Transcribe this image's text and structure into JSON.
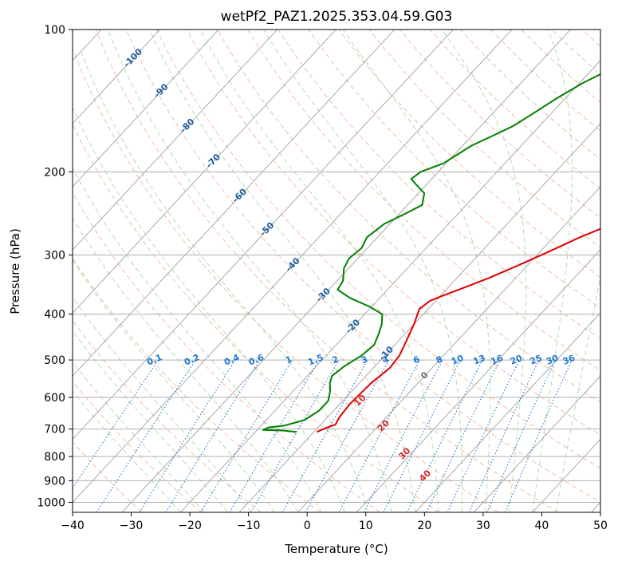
{
  "chart_data": {
    "type": "line",
    "title": "wetPf2_PAZ1.2025.353.04.59.G03",
    "xlabel": "Temperature (°C)",
    "ylabel": "Pressure (hPa)",
    "xlim": [
      -40,
      50
    ],
    "ylim": [
      1050,
      100
    ],
    "x_ticks": [
      -40,
      -30,
      -20,
      -10,
      0,
      10,
      20,
      30,
      40,
      50
    ],
    "y_ticks": [
      100,
      200,
      300,
      400,
      500,
      600,
      700,
      800,
      900,
      1000
    ],
    "x_tick_labels": [
      "−40",
      "−30",
      "−20",
      "−10",
      "0",
      "10",
      "20",
      "30",
      "40",
      "50"
    ],
    "y_tick_labels": [
      "100",
      "200",
      "300",
      "400",
      "500",
      "600",
      "700",
      "800",
      "900",
      "1000"
    ],
    "colors": {
      "temperature": "#e00000",
      "dewpoint": "#008000",
      "isotherm": "#a0a0a0",
      "dry_adiabat": "#f4a582",
      "moist_adiabat": "#9ecf9e",
      "mixing_ratio": "#1f78d1",
      "isotherm_label": "#1f5f9f",
      "moist_label": "#d62728"
    },
    "series": [
      {
        "name": "Temperature",
        "points": [
          [
            -9.5,
            710
          ],
          [
            -8.5,
            695
          ],
          [
            -7.5,
            685
          ],
          [
            -8.0,
            660
          ],
          [
            -8.3,
            620
          ],
          [
            -8.0,
            560
          ],
          [
            -7.2,
            520
          ],
          [
            -7.5,
            490
          ],
          [
            -8.5,
            460
          ],
          [
            -10.0,
            420
          ],
          [
            -11.5,
            390
          ],
          [
            -11.0,
            375
          ],
          [
            -9.5,
            365
          ],
          [
            -7.0,
            350
          ],
          [
            -4.5,
            335
          ],
          [
            -1.5,
            315
          ],
          [
            1.5,
            295
          ],
          [
            4.5,
            275
          ],
          [
            8.5,
            255
          ],
          [
            13.0,
            235
          ],
          [
            17.0,
            220
          ],
          [
            21.5,
            205
          ],
          [
            25.0,
            192
          ],
          [
            28.0,
            180
          ],
          [
            30.5,
            168
          ],
          [
            32.0,
            158
          ],
          [
            33.5,
            148
          ],
          [
            35.5,
            140
          ],
          [
            37.0,
            132
          ],
          [
            38.0,
            122
          ],
          [
            39.5,
            114
          ],
          [
            41.5,
            106
          ],
          [
            43.5,
            100
          ]
        ]
      },
      {
        "name": "Dewpoint",
        "points": [
          [
            -13.0,
            710
          ],
          [
            -15.5,
            705
          ],
          [
            -19.0,
            703
          ],
          [
            -18.5,
            695
          ],
          [
            -16.0,
            688
          ],
          [
            -13.5,
            670
          ],
          [
            -12.5,
            640
          ],
          [
            -12.5,
            610
          ],
          [
            -13.8,
            580
          ],
          [
            -15.0,
            560
          ],
          [
            -15.8,
            540
          ],
          [
            -15.2,
            515
          ],
          [
            -14.0,
            490
          ],
          [
            -13.5,
            465
          ],
          [
            -14.5,
            440
          ],
          [
            -15.5,
            420
          ],
          [
            -17.0,
            400
          ],
          [
            -20.5,
            385
          ],
          [
            -25.0,
            370
          ],
          [
            -28.5,
            355
          ],
          [
            -29.0,
            340
          ],
          [
            -30.8,
            320
          ],
          [
            -31.5,
            305
          ],
          [
            -31.0,
            290
          ],
          [
            -31.8,
            275
          ],
          [
            -31.0,
            258
          ],
          [
            -29.0,
            245
          ],
          [
            -27.5,
            235
          ],
          [
            -29.0,
            222
          ],
          [
            -32.0,
            212
          ],
          [
            -33.5,
            207
          ],
          [
            -33.0,
            200
          ],
          [
            -30.5,
            192
          ],
          [
            -29.5,
            184
          ],
          [
            -28.5,
            176
          ],
          [
            -26.5,
            168
          ],
          [
            -24.5,
            160
          ],
          [
            -23.0,
            150
          ],
          [
            -21.5,
            140
          ],
          [
            -19.5,
            130
          ],
          [
            -16.5,
            120
          ],
          [
            -13.5,
            112
          ],
          [
            -10.0,
            106
          ],
          [
            -7.0,
            100
          ]
        ]
      }
    ],
    "isotherm_labels": [
      "-100",
      "-90",
      "-80",
      "-70",
      "-60",
      "-50",
      "-40",
      "-30",
      "-20",
      "-10",
      "0"
    ],
    "mixing_ratio_labels": [
      "0.1",
      "0.2",
      "0.4",
      "0.6",
      "1",
      "1.5",
      "2",
      "3",
      "4",
      "6",
      "8",
      "10",
      "13",
      "16",
      "20",
      "25",
      "30",
      "36"
    ],
    "moist_adiabat_labels": [
      "10",
      "20",
      "30",
      "40"
    ]
  }
}
